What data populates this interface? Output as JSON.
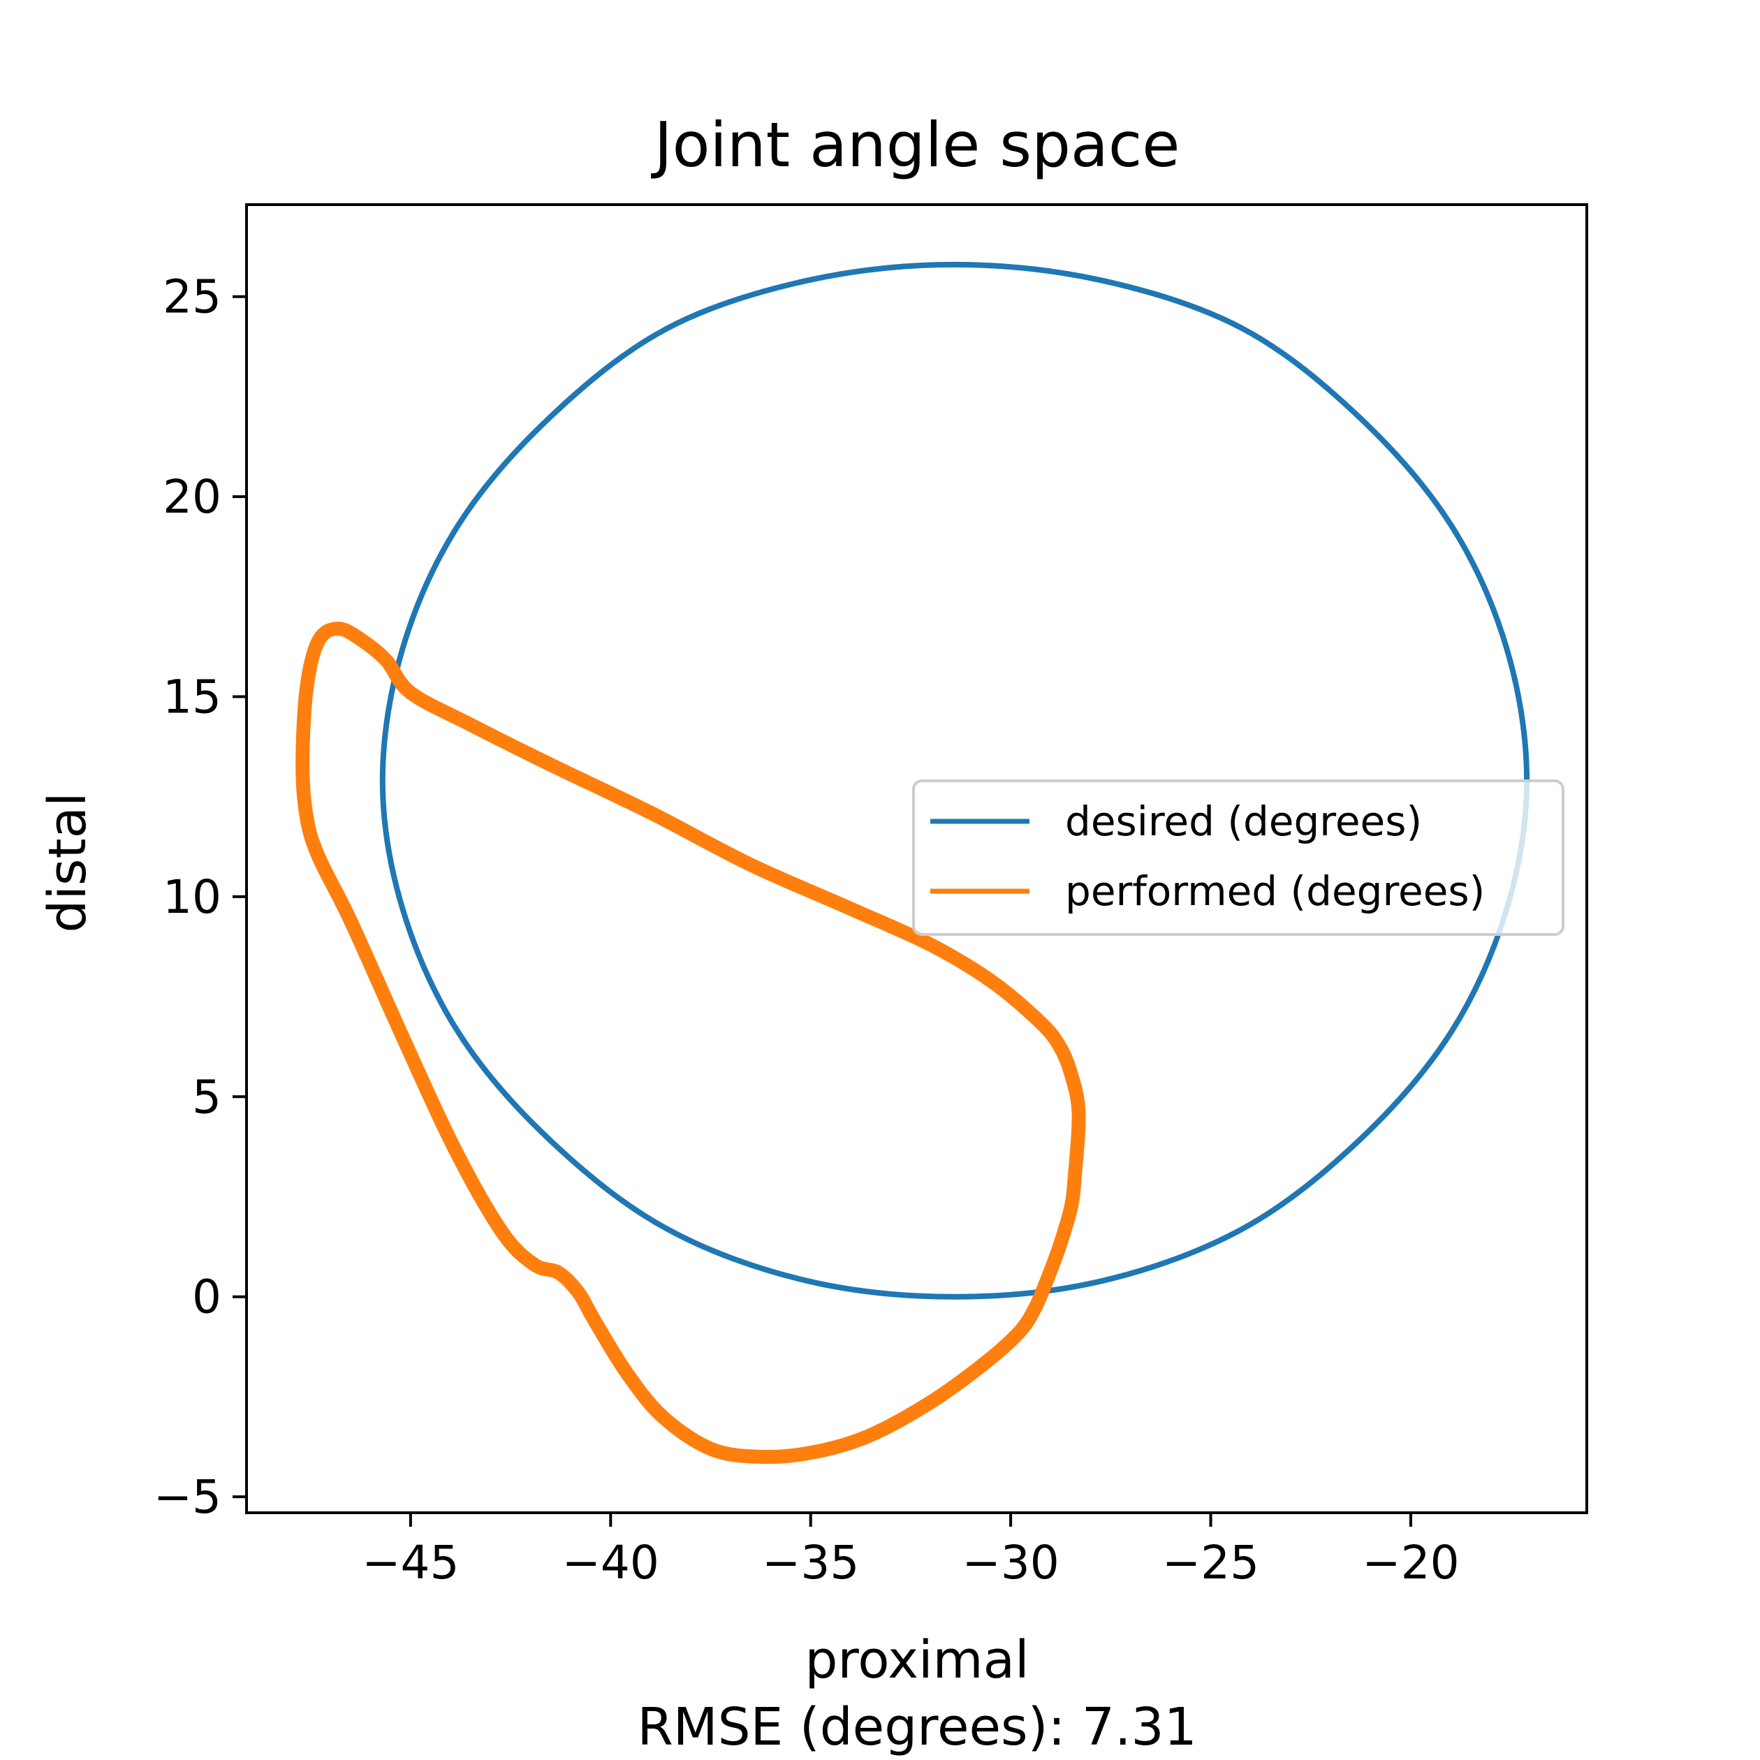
{
  "chart_data": {
    "type": "line",
    "title": "Joint angle space",
    "xlabel": "proximal",
    "ylabel": "distal",
    "footnote": "RMSE (degrees): 7.31",
    "xlim": [
      -49.1,
      -15.6
    ],
    "ylim": [
      -5.4,
      27.3
    ],
    "x_ticks": [
      -45,
      -40,
      -35,
      -30,
      -25,
      -20
    ],
    "y_ticks": [
      -5,
      0,
      5,
      10,
      15,
      20,
      25
    ],
    "x_tick_labels": [
      "−45",
      "−40",
      "−35",
      "−30",
      "−25",
      "−20"
    ],
    "y_tick_labels": [
      "−5",
      "0",
      "5",
      "10",
      "15",
      "20",
      "25"
    ],
    "grid": false,
    "legend_position": "center-right",
    "series": [
      {
        "name": "desired (degrees)",
        "color": "#1f77b4",
        "x": [
          -17.1,
          -17.6,
          -19.0,
          -21.3,
          -24.2,
          -27.7,
          -31.4,
          -35.1,
          -38.6,
          -41.5,
          -43.8,
          -45.2,
          -45.7,
          -45.2,
          -43.8,
          -41.5,
          -38.6,
          -35.1,
          -31.4,
          -27.7,
          -24.2,
          -21.3,
          -19.0,
          -17.6,
          -17.1
        ],
        "y": [
          12.9,
          16.2,
          19.3,
          22.0,
          24.2,
          25.4,
          25.8,
          25.4,
          24.2,
          22.0,
          19.3,
          16.2,
          12.9,
          9.7,
          6.6,
          3.9,
          1.7,
          0.4,
          0.0,
          0.4,
          1.7,
          3.9,
          6.6,
          9.7,
          12.9
        ]
      },
      {
        "name": "performed (degrees)",
        "color": "#ff7f0e",
        "x": [
          -45.6,
          -46.2,
          -46.8,
          -47.3,
          -47.6,
          -47.7,
          -47.6,
          -47.3,
          -46.5,
          -45.2,
          -43.9,
          -42.7,
          -41.9,
          -41.3,
          -40.8,
          -40.4,
          -39.6,
          -38.7,
          -37.5,
          -36.3,
          -35.0,
          -33.6,
          -32.1,
          -30.7,
          -29.8,
          -29.4,
          -29.1,
          -28.8,
          -28.5,
          -28.4,
          -28.3,
          -28.5,
          -28.8,
          -29.3,
          -30.5,
          -32.0,
          -34.0,
          -36.5,
          -39.0,
          -41.5,
          -43.5,
          -45.0,
          -45.6
        ],
        "y": [
          15.9,
          16.4,
          16.7,
          16.4,
          15.2,
          13.3,
          12.0,
          11.0,
          9.4,
          6.5,
          3.7,
          1.6,
          0.8,
          0.6,
          0.1,
          -0.6,
          -1.9,
          -3.0,
          -3.8,
          -4.0,
          -3.9,
          -3.5,
          -2.7,
          -1.7,
          -0.9,
          -0.3,
          0.4,
          1.2,
          2.2,
          3.0,
          4.6,
          5.6,
          6.3,
          6.9,
          7.9,
          8.8,
          9.7,
          10.8,
          12.1,
          13.3,
          14.3,
          15.1,
          15.9
        ]
      }
    ]
  }
}
